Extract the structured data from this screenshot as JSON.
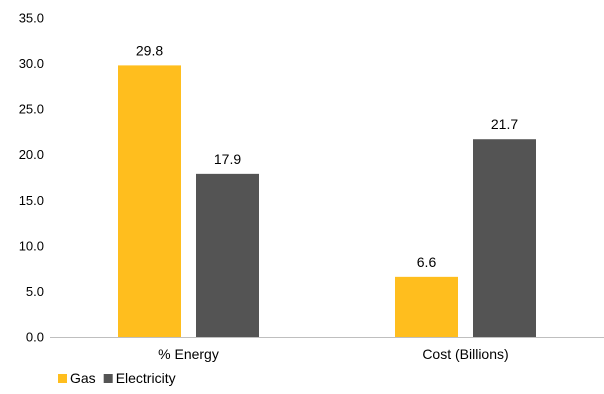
{
  "chart_data": {
    "type": "bar",
    "categories": [
      "% Energy",
      "Cost (Billions)"
    ],
    "series": [
      {
        "name": "Gas",
        "values": [
          29.8,
          6.6
        ],
        "labels": [
          "29.8",
          "6.6"
        ],
        "color": "#ffbe1e"
      },
      {
        "name": "Electricity",
        "values": [
          17.9,
          21.7
        ],
        "labels": [
          "17.9",
          "21.7"
        ],
        "color": "#545454"
      }
    ],
    "ylim": [
      0,
      35
    ],
    "yticks": [
      0,
      5,
      10,
      15,
      20,
      25,
      30,
      35
    ],
    "ytick_labels": [
      "0.0",
      "5.0",
      "10.0",
      "15.0",
      "20.0",
      "25.0",
      "30.0",
      "35.0"
    ],
    "grid": false,
    "legend": "bottom-left"
  }
}
